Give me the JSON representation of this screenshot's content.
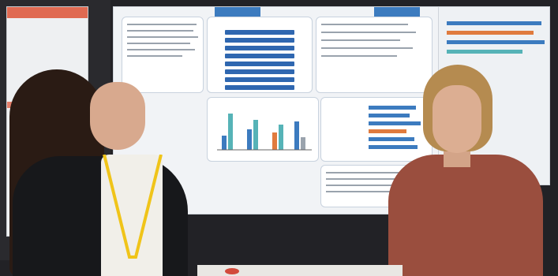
{
  "scene": {
    "description_free": true,
    "colors": {
      "poster_blue": "#3c7bbf",
      "poster_orange": "#e06a52",
      "left_jacket": "#17181b",
      "right_top": "#9a4e3e",
      "lanyard_yellow": "#f0c419"
    }
  }
}
